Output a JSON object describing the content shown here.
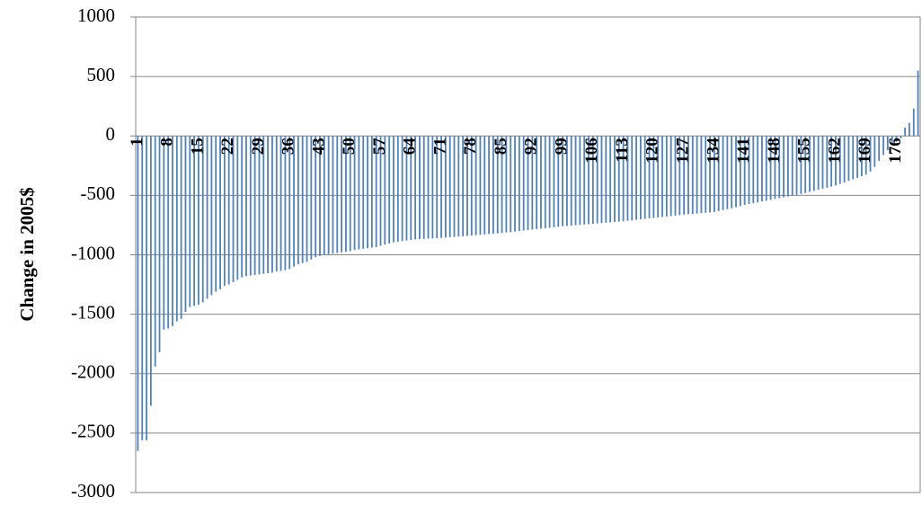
{
  "chart_data": {
    "type": "bar",
    "y_label": "Change in 2005$",
    "color": "#4f81bd",
    "ylim": [
      -3000,
      1000
    ],
    "yticks": [
      -3000,
      -2500,
      -2000,
      -1500,
      -1000,
      -500,
      0,
      500,
      1000
    ],
    "grid": true,
    "categories": [
      "1",
      null,
      null,
      null,
      null,
      null,
      null,
      "8",
      null,
      null,
      null,
      null,
      null,
      null,
      "15",
      null,
      null,
      null,
      null,
      null,
      null,
      "22",
      null,
      null,
      null,
      null,
      null,
      null,
      "29",
      null,
      null,
      null,
      null,
      null,
      null,
      "36",
      null,
      null,
      null,
      null,
      null,
      null,
      "43",
      null,
      null,
      null,
      null,
      null,
      null,
      "50",
      null,
      null,
      null,
      null,
      null,
      null,
      "57",
      null,
      null,
      null,
      null,
      null,
      null,
      "64",
      null,
      null,
      null,
      null,
      null,
      null,
      "71",
      null,
      null,
      null,
      null,
      null,
      null,
      "78",
      null,
      null,
      null,
      null,
      null,
      null,
      "85",
      null,
      null,
      null,
      null,
      null,
      null,
      "92",
      null,
      null,
      null,
      null,
      null,
      null,
      "99",
      null,
      null,
      null,
      null,
      null,
      null,
      "106",
      null,
      null,
      null,
      null,
      null,
      null,
      "113",
      null,
      null,
      null,
      null,
      null,
      null,
      "120",
      null,
      null,
      null,
      null,
      null,
      null,
      "127",
      null,
      null,
      null,
      null,
      null,
      null,
      "134",
      null,
      null,
      null,
      null,
      null,
      null,
      "141",
      null,
      null,
      null,
      null,
      null,
      null,
      "148",
      null,
      null,
      null,
      null,
      null,
      null,
      "155",
      null,
      null,
      null,
      null,
      null,
      null,
      "162",
      null,
      null,
      null,
      null,
      null,
      null,
      "169",
      null,
      null,
      null,
      null,
      null,
      null,
      "176",
      null,
      null,
      null,
      null,
      null
    ],
    "values": [
      -2650,
      -2560,
      -2560,
      -2270,
      -1940,
      -1820,
      -1630,
      -1620,
      -1600,
      -1560,
      -1540,
      -1480,
      -1440,
      -1430,
      -1420,
      -1400,
      -1370,
      -1340,
      -1310,
      -1290,
      -1260,
      -1250,
      -1230,
      -1210,
      -1190,
      -1180,
      -1175,
      -1170,
      -1165,
      -1160,
      -1155,
      -1150,
      -1140,
      -1135,
      -1130,
      -1120,
      -1100,
      -1080,
      -1070,
      -1060,
      -1040,
      -1020,
      -1010,
      -1000,
      -995,
      -990,
      -985,
      -980,
      -975,
      -970,
      -960,
      -955,
      -950,
      -945,
      -940,
      -935,
      -925,
      -915,
      -905,
      -895,
      -890,
      -885,
      -880,
      -875,
      -870,
      -868,
      -866,
      -864,
      -862,
      -860,
      -858,
      -855,
      -852,
      -850,
      -847,
      -844,
      -841,
      -838,
      -835,
      -832,
      -829,
      -826,
      -823,
      -820,
      -817,
      -812,
      -808,
      -804,
      -800,
      -796,
      -792,
      -788,
      -784,
      -780,
      -776,
      -772,
      -768,
      -764,
      -760,
      -757,
      -754,
      -751,
      -748,
      -745,
      -742,
      -739,
      -736,
      -733,
      -730,
      -727,
      -724,
      -721,
      -718,
      -714,
      -710,
      -706,
      -702,
      -698,
      -694,
      -690,
      -686,
      -682,
      -678,
      -674,
      -670,
      -666,
      -662,
      -659,
      -656,
      -653,
      -650,
      -647,
      -644,
      -640,
      -632,
      -624,
      -616,
      -608,
      -600,
      -590,
      -580,
      -573,
      -566,
      -559,
      -552,
      -545,
      -538,
      -530,
      -523,
      -516,
      -509,
      -502,
      -495,
      -488,
      -480,
      -471,
      -462,
      -453,
      -444,
      -435,
      -426,
      -417,
      -404,
      -391,
      -378,
      -365,
      -352,
      -339,
      -326,
      -300,
      -260,
      -210,
      -160,
      -120,
      -80,
      -50,
      -20,
      70,
      110,
      230,
      550
    ]
  }
}
